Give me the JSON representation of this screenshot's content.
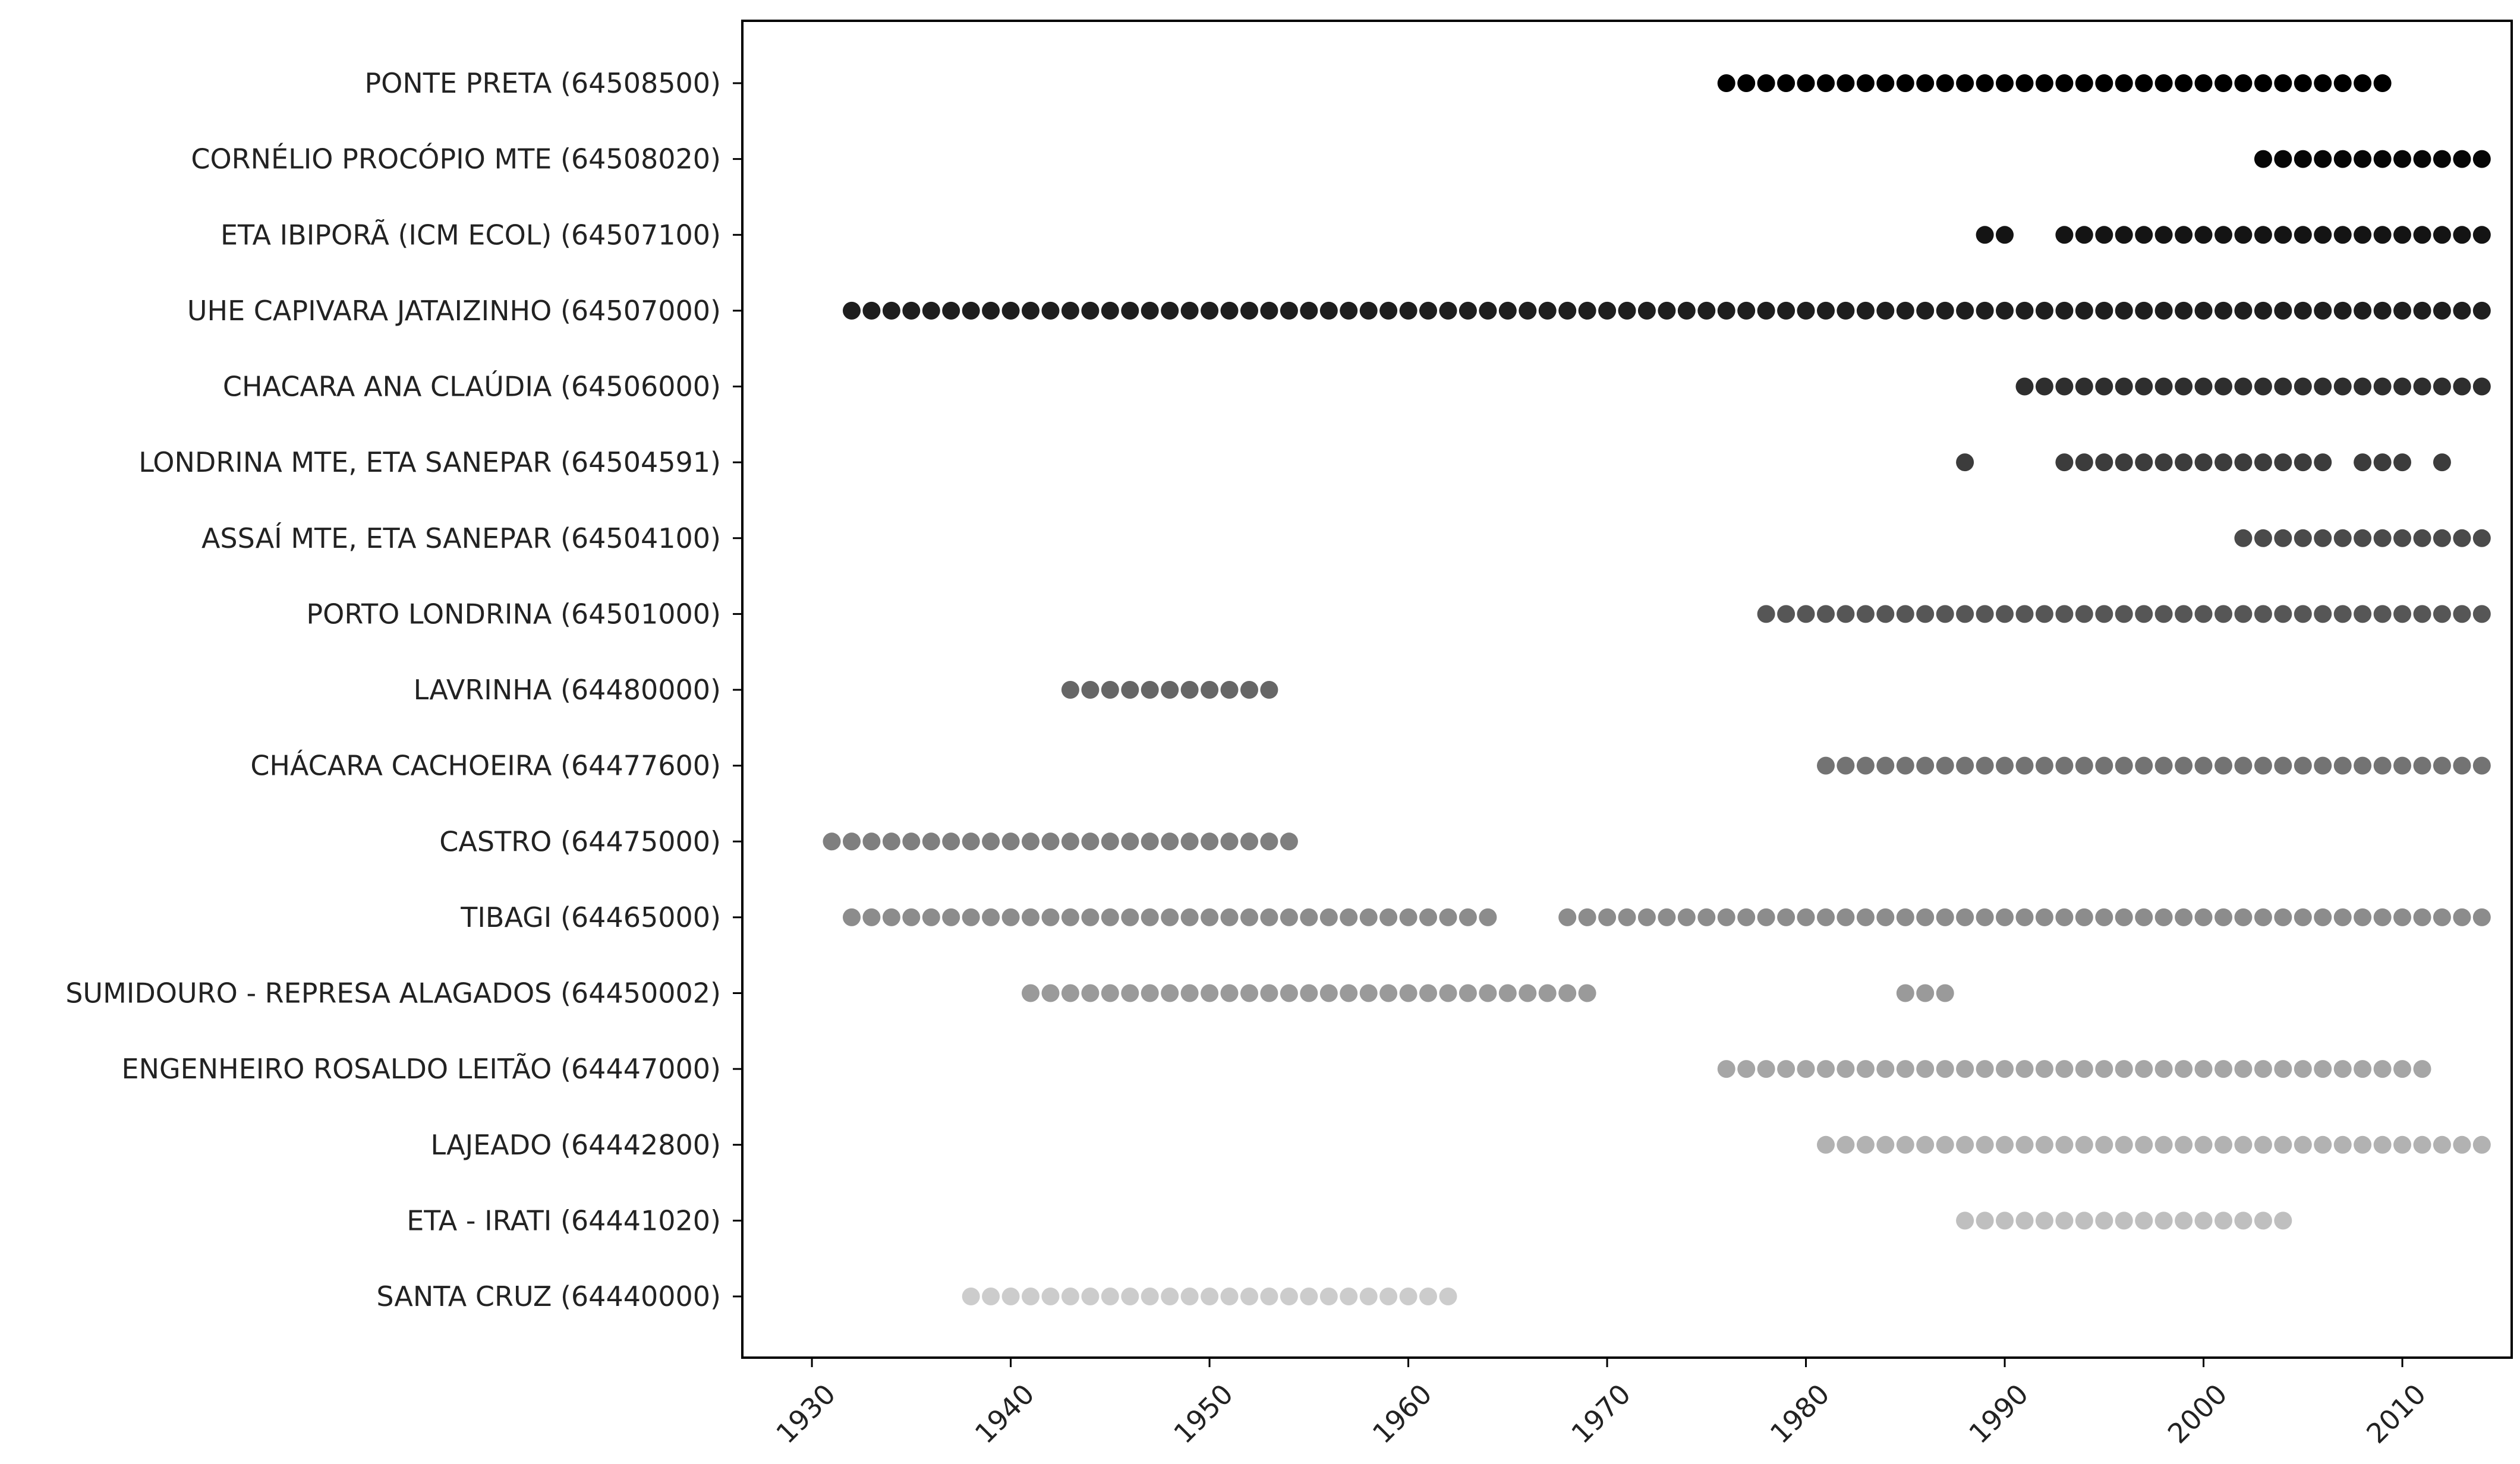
{
  "chart_data": {
    "type": "scatter",
    "title": "",
    "xlabel": "",
    "ylabel": "",
    "xlim": [
      1926.5,
      2015.5
    ],
    "xticks": [
      1930,
      1940,
      1950,
      1960,
      1970,
      1980,
      1990,
      2000,
      2010
    ],
    "grid": false,
    "legend": "none",
    "series": [
      {
        "label": "PONTE PRETA (64508500)",
        "color": "#000000",
        "years": [
          1976,
          1977,
          1978,
          1979,
          1980,
          1981,
          1982,
          1983,
          1984,
          1985,
          1986,
          1987,
          1988,
          1989,
          1990,
          1991,
          1992,
          1993,
          1994,
          1995,
          1996,
          1997,
          1998,
          1999,
          2000,
          2001,
          2002,
          2003,
          2004,
          2005,
          2006,
          2007,
          2008,
          2009
        ]
      },
      {
        "label": "CORNÉLIO PROCÓPIO MTE (64508020)",
        "color": "#060606",
        "years": [
          2003,
          2004,
          2005,
          2006,
          2007,
          2008,
          2009,
          2010,
          2011,
          2012,
          2013,
          2014
        ]
      },
      {
        "label": "ETA IBIPORÃ (ICM ECOL) (64507100)",
        "color": "#141414",
        "years": [
          1989,
          1990,
          1993,
          1994,
          1995,
          1996,
          1997,
          1998,
          1999,
          2000,
          2001,
          2002,
          2003,
          2004,
          2005,
          2006,
          2007,
          2008,
          2009,
          2010,
          2011,
          2012,
          2013,
          2014
        ]
      },
      {
        "label": "UHE CAPIVARA JATAIZINHO (64507000)",
        "color": "#1e1e1e",
        "years": [
          1932,
          1933,
          1934,
          1935,
          1936,
          1937,
          1938,
          1939,
          1940,
          1941,
          1942,
          1943,
          1944,
          1945,
          1946,
          1947,
          1948,
          1949,
          1950,
          1951,
          1952,
          1953,
          1954,
          1955,
          1956,
          1957,
          1958,
          1959,
          1960,
          1961,
          1962,
          1963,
          1964,
          1965,
          1966,
          1967,
          1968,
          1969,
          1970,
          1971,
          1972,
          1973,
          1974,
          1975,
          1976,
          1977,
          1978,
          1979,
          1980,
          1981,
          1982,
          1983,
          1984,
          1985,
          1986,
          1987,
          1988,
          1989,
          1990,
          1991,
          1992,
          1993,
          1994,
          1995,
          1996,
          1997,
          1998,
          1999,
          2000,
          2001,
          2002,
          2003,
          2004,
          2005,
          2006,
          2007,
          2008,
          2009,
          2010,
          2011,
          2012,
          2013,
          2014
        ]
      },
      {
        "label": "CHACARA ANA CLAÚDIA (64506000)",
        "color": "#2e2e2e",
        "years": [
          1991,
          1992,
          1993,
          1994,
          1995,
          1996,
          1997,
          1998,
          1999,
          2000,
          2001,
          2002,
          2003,
          2004,
          2005,
          2006,
          2007,
          2008,
          2009,
          2010,
          2011,
          2012,
          2013,
          2014
        ]
      },
      {
        "label": "LONDRINA MTE, ETA SANEPAR (64504591)",
        "color": "#3c3c3c",
        "years": [
          1988,
          1993,
          1994,
          1995,
          1996,
          1997,
          1998,
          1999,
          2000,
          2001,
          2002,
          2003,
          2004,
          2005,
          2006,
          2008,
          2009,
          2010,
          2012
        ]
      },
      {
        "label": "ASSAÍ MTE, ETA SANEPAR (64504100)",
        "color": "#4a4a4a",
        "years": [
          2002,
          2003,
          2004,
          2005,
          2006,
          2007,
          2008,
          2009,
          2010,
          2011,
          2012,
          2013,
          2014
        ]
      },
      {
        "label": "PORTO LONDRINA (64501000)",
        "color": "#565656",
        "years": [
          1978,
          1979,
          1980,
          1981,
          1982,
          1983,
          1984,
          1985,
          1986,
          1987,
          1988,
          1989,
          1990,
          1991,
          1992,
          1993,
          1994,
          1995,
          1996,
          1997,
          1998,
          1999,
          2000,
          2001,
          2002,
          2003,
          2004,
          2005,
          2006,
          2007,
          2008,
          2009,
          2010,
          2011,
          2012,
          2013,
          2014
        ]
      },
      {
        "label": "LAVRINHA (64480000)",
        "color": "#666666",
        "years": [
          1943,
          1944,
          1945,
          1946,
          1947,
          1948,
          1949,
          1950,
          1951,
          1952,
          1953
        ]
      },
      {
        "label": "CHÁCARA CACHOEIRA (64477600)",
        "color": "#737373",
        "years": [
          1981,
          1982,
          1983,
          1984,
          1985,
          1986,
          1987,
          1988,
          1989,
          1990,
          1991,
          1992,
          1993,
          1994,
          1995,
          1996,
          1997,
          1998,
          1999,
          2000,
          2001,
          2002,
          2003,
          2004,
          2005,
          2006,
          2007,
          2008,
          2009,
          2010,
          2011,
          2012,
          2013,
          2014
        ]
      },
      {
        "label": "CASTRO (64475000)",
        "color": "#7f7f7f",
        "years": [
          1931,
          1932,
          1933,
          1934,
          1935,
          1936,
          1937,
          1938,
          1939,
          1940,
          1941,
          1942,
          1943,
          1944,
          1945,
          1946,
          1947,
          1948,
          1949,
          1950,
          1951,
          1952,
          1953,
          1954
        ]
      },
      {
        "label": "TIBAGI (64465000)",
        "color": "#8c8c8c",
        "years": [
          1932,
          1933,
          1934,
          1935,
          1936,
          1937,
          1938,
          1939,
          1940,
          1941,
          1942,
          1943,
          1944,
          1945,
          1946,
          1947,
          1948,
          1949,
          1950,
          1951,
          1952,
          1953,
          1954,
          1955,
          1956,
          1957,
          1958,
          1959,
          1960,
          1961,
          1962,
          1963,
          1964,
          1968,
          1969,
          1970,
          1971,
          1972,
          1973,
          1974,
          1975,
          1976,
          1977,
          1978,
          1979,
          1980,
          1981,
          1982,
          1983,
          1984,
          1985,
          1986,
          1987,
          1988,
          1989,
          1990,
          1991,
          1992,
          1993,
          1994,
          1995,
          1996,
          1997,
          1998,
          1999,
          2000,
          2001,
          2002,
          2003,
          2004,
          2005,
          2006,
          2007,
          2008,
          2009,
          2010,
          2011,
          2012,
          2013,
          2014
        ]
      },
      {
        "label": "SUMIDOURO - REPRESA ALAGADOS (64450002)",
        "color": "#9a9a9a",
        "years": [
          1941,
          1942,
          1943,
          1944,
          1945,
          1946,
          1947,
          1948,
          1949,
          1950,
          1951,
          1952,
          1953,
          1954,
          1955,
          1956,
          1957,
          1958,
          1959,
          1960,
          1961,
          1962,
          1963,
          1964,
          1965,
          1966,
          1967,
          1968,
          1969,
          1985,
          1986,
          1987
        ]
      },
      {
        "label": "ENGENHEIRO ROSALDO LEITÃO (64447000)",
        "color": "#a6a6a6",
        "years": [
          1976,
          1977,
          1978,
          1979,
          1980,
          1981,
          1982,
          1983,
          1984,
          1985,
          1986,
          1987,
          1988,
          1989,
          1990,
          1991,
          1992,
          1993,
          1994,
          1995,
          1996,
          1997,
          1998,
          1999,
          2000,
          2001,
          2002,
          2003,
          2004,
          2005,
          2006,
          2007,
          2008,
          2009,
          2010,
          2011
        ]
      },
      {
        "label": "LAJEADO (64442800)",
        "color": "#b2b2b2",
        "years": [
          1981,
          1982,
          1983,
          1984,
          1985,
          1986,
          1987,
          1988,
          1989,
          1990,
          1991,
          1992,
          1993,
          1994,
          1995,
          1996,
          1997,
          1998,
          1999,
          2000,
          2001,
          2002,
          2003,
          2004,
          2005,
          2006,
          2007,
          2008,
          2009,
          2010,
          2011,
          2012,
          2013,
          2014
        ]
      },
      {
        "label": "ETA - IRATI (64441020)",
        "color": "#bfbfbf",
        "years": [
          1988,
          1989,
          1990,
          1991,
          1992,
          1993,
          1994,
          1995,
          1996,
          1997,
          1998,
          1999,
          2000,
          2001,
          2002,
          2003,
          2004
        ]
      },
      {
        "label": "SANTA CRUZ (64440000)",
        "color": "#cccccc",
        "years": [
          1938,
          1939,
          1940,
          1941,
          1942,
          1943,
          1944,
          1945,
          1946,
          1947,
          1948,
          1949,
          1950,
          1951,
          1952,
          1953,
          1954,
          1955,
          1956,
          1957,
          1958,
          1959,
          1960,
          1961,
          1962
        ]
      }
    ]
  }
}
